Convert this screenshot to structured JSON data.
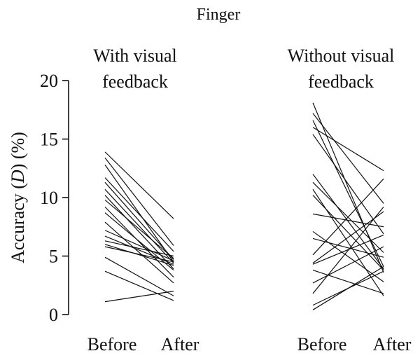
{
  "chart_data": {
    "type": "line",
    "title": "Finger",
    "ylabel_prefix": "Accuracy (",
    "ylabel_italic": "D",
    "ylabel_suffix": ") (%)",
    "ylim": [
      0,
      20
    ],
    "yticks": [
      0,
      5,
      10,
      15,
      20
    ],
    "grid": false,
    "categories": [
      "Before",
      "After"
    ],
    "panels": [
      {
        "label_line1": "With visual",
        "label_line2": "feedback",
        "pairs": [
          [
            13.9,
            8.2
          ],
          [
            13.4,
            5.9
          ],
          [
            12.8,
            4.5
          ],
          [
            11.7,
            5.4
          ],
          [
            11.3,
            4.7
          ],
          [
            10.7,
            4.4
          ],
          [
            10.2,
            3.9
          ],
          [
            9.8,
            4.8
          ],
          [
            9.2,
            3.2
          ],
          [
            8.7,
            3.8
          ],
          [
            7.9,
            2.7
          ],
          [
            7.2,
            4.6
          ],
          [
            6.7,
            4.3
          ],
          [
            6.3,
            5.0
          ],
          [
            6.0,
            4.2
          ],
          [
            5.8,
            4.5
          ],
          [
            4.9,
            1.6
          ],
          [
            3.7,
            1.2
          ],
          [
            1.1,
            2.0
          ]
        ]
      },
      {
        "label_line1": "Without visual",
        "label_line2": "feedback",
        "pairs": [
          [
            18.1,
            3.6
          ],
          [
            17.2,
            9.5
          ],
          [
            16.6,
            4.1
          ],
          [
            16.0,
            12.3
          ],
          [
            15.4,
            6.9
          ],
          [
            12.0,
            3.9
          ],
          [
            11.3,
            5.3
          ],
          [
            10.7,
            1.6
          ],
          [
            10.2,
            3.8
          ],
          [
            8.6,
            7.5
          ],
          [
            7.1,
            2.8
          ],
          [
            6.5,
            4.9
          ],
          [
            5.1,
            11.6
          ],
          [
            4.4,
            8.8
          ],
          [
            4.3,
            6.8
          ],
          [
            3.8,
            1.8
          ],
          [
            2.7,
            5.8
          ],
          [
            1.8,
            9.2
          ],
          [
            0.8,
            3.7
          ],
          [
            0.4,
            4.1
          ]
        ]
      }
    ]
  }
}
